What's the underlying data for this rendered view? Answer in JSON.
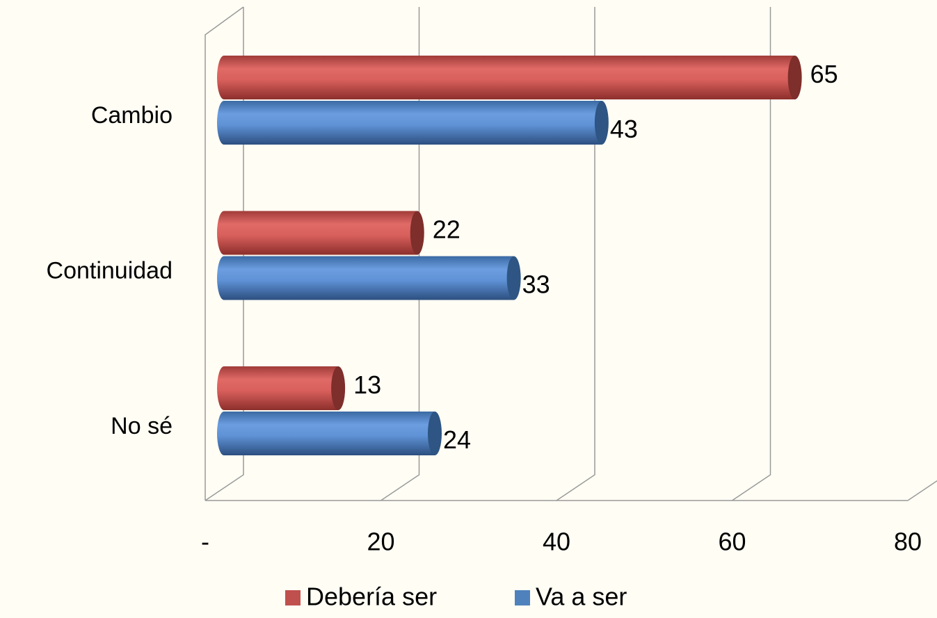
{
  "chart_data": {
    "type": "bar",
    "orientation": "horizontal",
    "categories": [
      "Cambio",
      "Continuidad",
      "No sé"
    ],
    "series": [
      {
        "name": "Debería ser",
        "color": "#c0504d",
        "values": [
          65,
          22,
          13
        ]
      },
      {
        "name": "Va a ser",
        "color": "#4f81bd",
        "values": [
          43,
          33,
          24
        ]
      }
    ],
    "xlim": [
      0,
      80
    ],
    "xticks": [
      {
        "value": 0,
        "label": "-"
      },
      20,
      40,
      60,
      80
    ],
    "grid": true,
    "legend": "bottom"
  }
}
